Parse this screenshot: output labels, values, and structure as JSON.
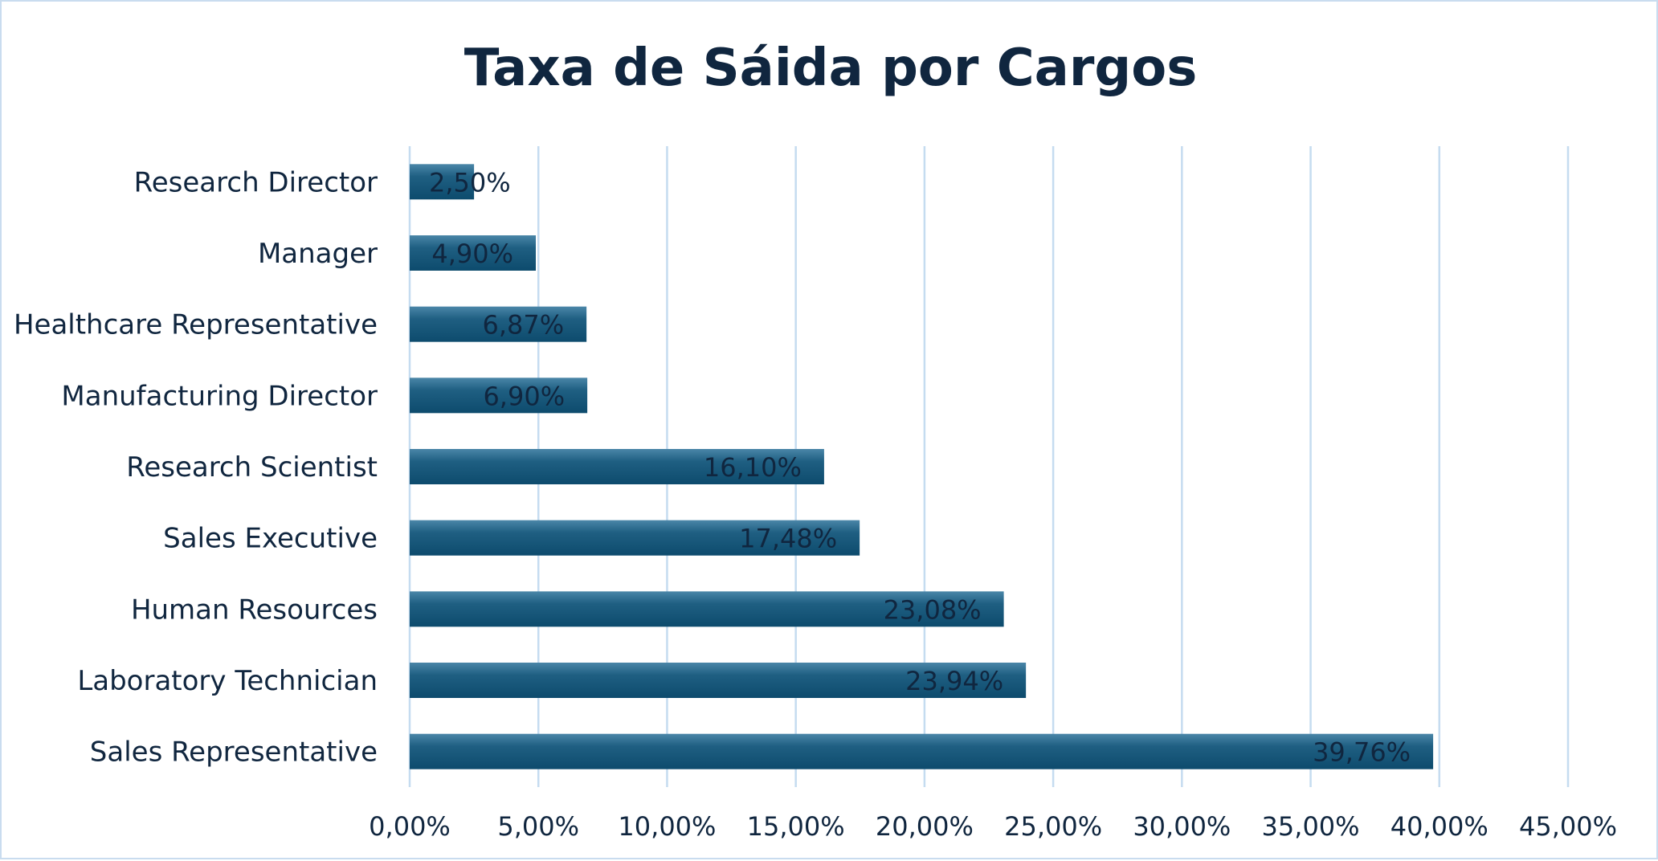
{
  "chart_data": {
    "type": "bar",
    "orientation": "horizontal",
    "title": "Taxa de Sáida por Cargos",
    "categories": [
      "Research Director",
      "Manager",
      "Healthcare Representative",
      "Manufacturing Director",
      "Research Scientist",
      "Sales Executive",
      "Human Resources",
      "Laboratory Technician",
      "Sales Representative"
    ],
    "values": [
      2.5,
      4.9,
      6.87,
      6.9,
      16.1,
      17.48,
      23.08,
      23.94,
      39.76
    ],
    "data_labels": [
      "2,50%",
      "4,90%",
      "6,87%",
      "6,90%",
      "16,10%",
      "17,48%",
      "23,08%",
      "23,94%",
      "39,76%"
    ],
    "xlim": [
      0,
      45
    ],
    "x_ticks": [
      0,
      5,
      10,
      15,
      20,
      25,
      30,
      35,
      40,
      45
    ],
    "x_tick_labels": [
      "0,00%",
      "5,00%",
      "10,00%",
      "15,00%",
      "20,00%",
      "25,00%",
      "30,00%",
      "35,00%",
      "40,00%",
      "45,00%"
    ],
    "xlabel": "",
    "ylabel": "",
    "grid": "vertical",
    "legend": "none",
    "bar_color": "#1f5f82",
    "bar_color_light": "#4a86a8",
    "bar_color_dark": "#0d4b6d",
    "grid_color": "#c5dcf0",
    "text_color": "#10263f"
  }
}
